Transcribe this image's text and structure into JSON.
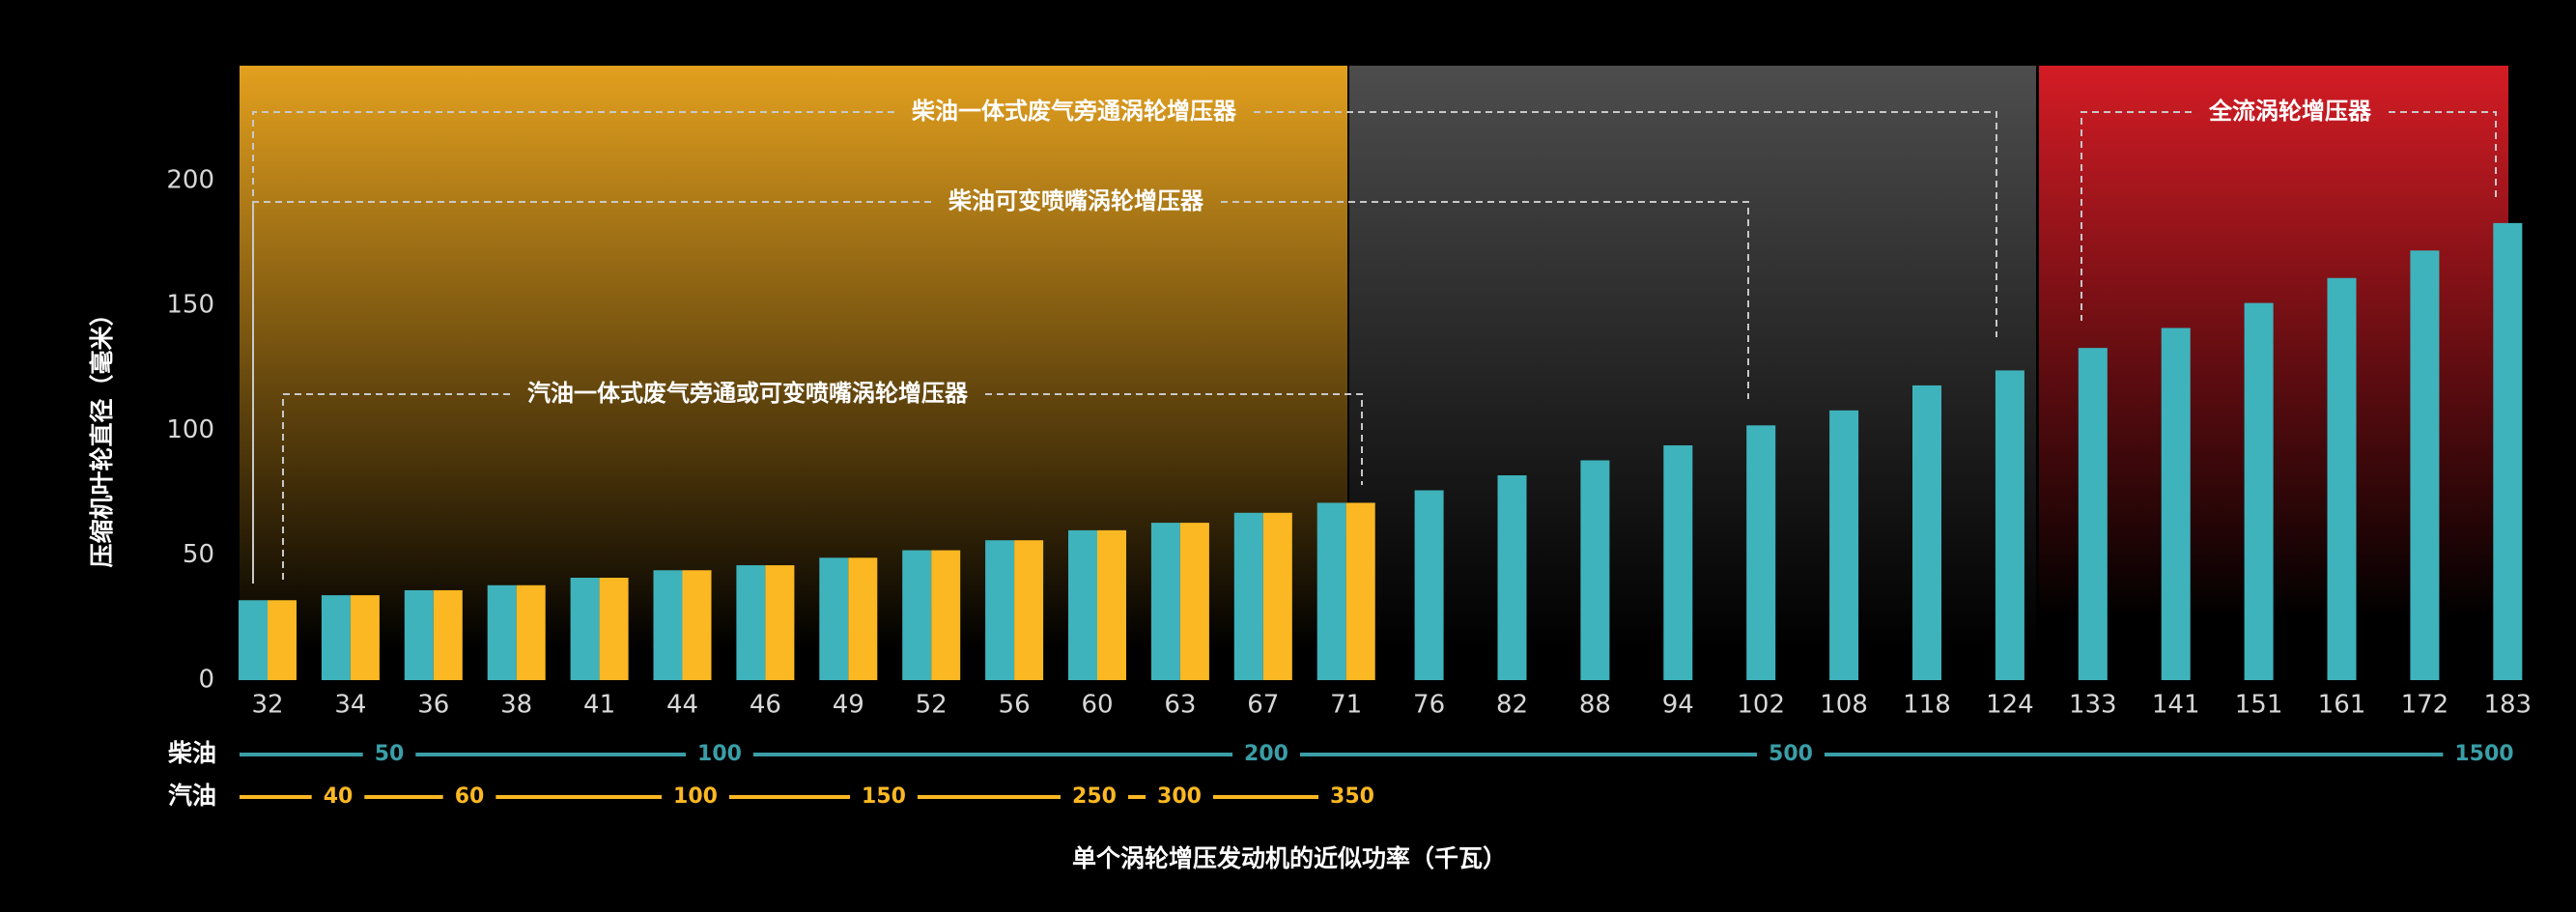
{
  "chart_data": {
    "type": "bar",
    "y_label": "压缩机叶轮直径（毫米）",
    "x_label": "单个涡轮增压发动机的近似功率（千瓦）",
    "categories": [
      "32",
      "34",
      "36",
      "38",
      "41",
      "44",
      "46",
      "49",
      "52",
      "56",
      "60",
      "63",
      "67",
      "71",
      "76",
      "82",
      "88",
      "94",
      "102",
      "108",
      "118",
      "124",
      "133",
      "141",
      "151",
      "161",
      "172",
      "183"
    ],
    "series": [
      {
        "color": "#3fb3bc",
        "values": [
          32,
          34,
          36,
          38,
          41,
          44,
          46,
          49,
          52,
          56,
          60,
          63,
          67,
          71,
          76,
          82,
          88,
          94,
          102,
          108,
          118,
          124,
          133,
          141,
          151,
          161,
          172,
          183
        ]
      },
      {
        "color": "#fbb823",
        "values": [
          32,
          34,
          36,
          38,
          41,
          44,
          46,
          49,
          52,
          56,
          60,
          63,
          67,
          71,
          null,
          null,
          null,
          null,
          null,
          null,
          null,
          null,
          null,
          null,
          null,
          null,
          null,
          null
        ]
      }
    ],
    "ylim": [
      0,
      246
    ],
    "yticks": [
      0,
      50,
      100,
      150,
      200
    ],
    "region_colors": [
      "#e3a01e",
      "#4d4d4d",
      "#d41c25"
    ],
    "annotations": [
      {
        "text": "柴油一体式废气旁通涡轮增压器"
      },
      {
        "text": "柴油可变喷嘴涡轮增压器"
      },
      {
        "text": "汽油一体式废气旁通或可变喷嘴涡轮增压器"
      },
      {
        "text": "全流涡轮增压器"
      }
    ],
    "power_scales": [
      {
        "label": "柴油",
        "color": "#3a9ea7",
        "values": [
          50,
          100,
          200,
          500,
          1500
        ]
      },
      {
        "label": "汽油",
        "color": "#fbb823",
        "values": [
          40,
          60,
          100,
          150,
          250,
          300,
          350
        ]
      }
    ]
  }
}
